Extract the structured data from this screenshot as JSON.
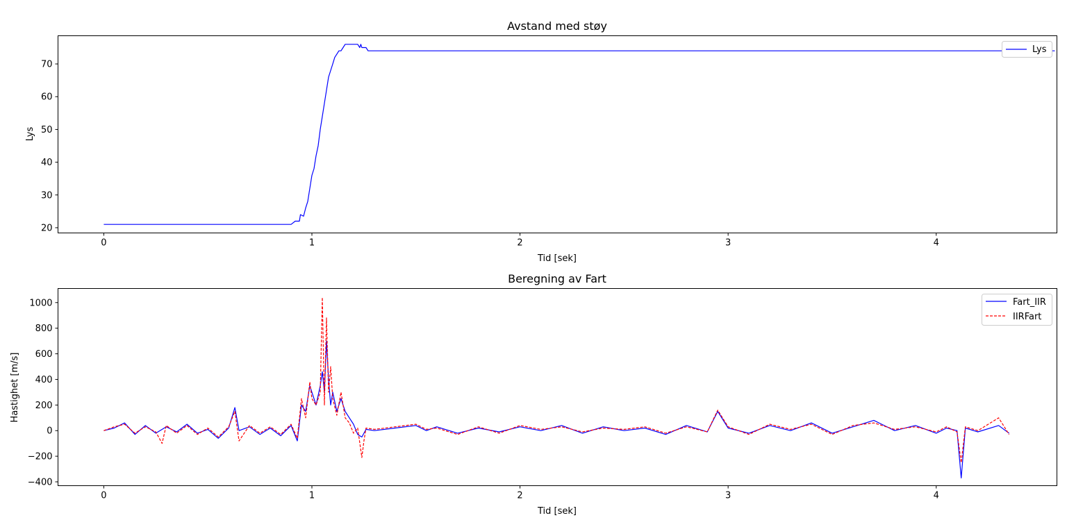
{
  "figure": {
    "background": "#ffffff"
  },
  "chart_data": [
    {
      "type": "line",
      "title": "Avstand med støy",
      "xlabel": "Tid [sek]",
      "ylabel": "Lys",
      "xlim": [
        -0.22,
        4.58
      ],
      "ylim": [
        18.4,
        78.6
      ],
      "xticks": [
        0,
        1,
        2,
        3,
        4
      ],
      "xtick_labels": [
        "0",
        "1",
        "2",
        "3",
        "4"
      ],
      "yticks": [
        20,
        30,
        40,
        50,
        60,
        70
      ],
      "ytick_labels": [
        "20",
        "30",
        "40",
        "50",
        "60",
        "70"
      ],
      "grid": false,
      "legend": {
        "position": "top-right",
        "entries": [
          {
            "label": "Lys",
            "color": "#0000ff",
            "style": "solid"
          }
        ]
      },
      "series": [
        {
          "name": "Lys",
          "color": "#0000ff",
          "style": "solid",
          "x": [
            0,
            0.5,
            0.9,
            0.92,
            0.94,
            0.945,
            0.96,
            0.97,
            0.98,
            0.99,
            1.0,
            1.01,
            1.02,
            1.03,
            1.04,
            1.05,
            1.06,
            1.07,
            1.08,
            1.09,
            1.1,
            1.11,
            1.12,
            1.13,
            1.14,
            1.15,
            1.16,
            1.17,
            1.18,
            1.2,
            1.22,
            1.23,
            1.235,
            1.24,
            1.25,
            1.26,
            1.27,
            1.5,
            2.0,
            3.0,
            4.0,
            4.57
          ],
          "y": [
            21,
            21,
            21,
            22,
            22,
            24,
            23.5,
            26,
            28,
            32,
            36,
            38,
            42,
            45,
            50,
            54,
            58,
            62,
            66,
            68,
            70,
            72,
            73,
            74,
            74,
            75,
            76,
            76,
            76,
            76,
            76,
            75,
            76,
            75,
            75,
            75,
            74,
            74,
            74,
            74,
            74,
            74
          ]
        }
      ]
    },
    {
      "type": "line",
      "title": "Beregning av Fart",
      "xlabel": "Tid [sek]",
      "ylabel": "Hastighet [m/s]",
      "xlim": [
        -0.22,
        4.58
      ],
      "ylim": [
        -430,
        1110
      ],
      "xticks": [
        0,
        1,
        2,
        3,
        4
      ],
      "xtick_labels": [
        "0",
        "1",
        "2",
        "3",
        "4"
      ],
      "yticks": [
        -400,
        -200,
        0,
        200,
        400,
        600,
        800,
        1000
      ],
      "ytick_labels": [
        "−400",
        "−200",
        "0",
        "200",
        "400",
        "600",
        "800",
        "1000"
      ],
      "grid": false,
      "legend": {
        "position": "top-right",
        "entries": [
          {
            "label": "Fart_IIR",
            "color": "#0000ff",
            "style": "solid"
          },
          {
            "label": "IIRFart",
            "color": "#ff0000",
            "style": "dashed"
          }
        ]
      },
      "series": [
        {
          "name": "Fart_IIR",
          "color": "#0000ff",
          "style": "solid",
          "x": [
            0,
            0.05,
            0.1,
            0.15,
            0.2,
            0.25,
            0.3,
            0.35,
            0.4,
            0.45,
            0.5,
            0.55,
            0.6,
            0.63,
            0.65,
            0.7,
            0.75,
            0.8,
            0.85,
            0.9,
            0.93,
            0.95,
            0.97,
            0.99,
            1.0,
            1.02,
            1.04,
            1.05,
            1.06,
            1.07,
            1.08,
            1.09,
            1.1,
            1.12,
            1.14,
            1.16,
            1.18,
            1.2,
            1.22,
            1.24,
            1.26,
            1.3,
            1.4,
            1.5,
            1.55,
            1.6,
            1.7,
            1.8,
            1.9,
            2.0,
            2.1,
            2.2,
            2.3,
            2.4,
            2.5,
            2.6,
            2.7,
            2.8,
            2.9,
            2.95,
            3.0,
            3.1,
            3.2,
            3.3,
            3.4,
            3.5,
            3.6,
            3.7,
            3.8,
            3.9,
            4.0,
            4.05,
            4.1,
            4.12,
            4.14,
            4.2,
            4.3,
            4.35
          ],
          "y": [
            0,
            20,
            60,
            -30,
            40,
            -20,
            30,
            -10,
            50,
            -20,
            10,
            -60,
            20,
            180,
            0,
            30,
            -30,
            20,
            -40,
            40,
            -80,
            200,
            150,
            350,
            300,
            200,
            350,
            460,
            300,
            700,
            400,
            200,
            300,
            150,
            250,
            150,
            100,
            50,
            -30,
            -50,
            10,
            0,
            20,
            40,
            0,
            30,
            -20,
            20,
            -10,
            30,
            0,
            40,
            -20,
            30,
            0,
            20,
            -30,
            40,
            -10,
            150,
            20,
            -20,
            40,
            0,
            60,
            -20,
            30,
            80,
            0,
            40,
            -20,
            20,
            0,
            -370,
            20,
            -10,
            40,
            -20
          ]
        },
        {
          "name": "IIRFart",
          "color": "#ff0000",
          "style": "dashed",
          "x": [
            0,
            0.05,
            0.1,
            0.15,
            0.2,
            0.25,
            0.28,
            0.3,
            0.35,
            0.4,
            0.45,
            0.5,
            0.55,
            0.6,
            0.63,
            0.65,
            0.7,
            0.75,
            0.8,
            0.85,
            0.9,
            0.93,
            0.95,
            0.97,
            0.99,
            1.0,
            1.02,
            1.04,
            1.05,
            1.06,
            1.07,
            1.08,
            1.09,
            1.1,
            1.12,
            1.14,
            1.16,
            1.18,
            1.2,
            1.22,
            1.24,
            1.25,
            1.26,
            1.3,
            1.4,
            1.5,
            1.55,
            1.6,
            1.7,
            1.8,
            1.9,
            2.0,
            2.1,
            2.2,
            2.3,
            2.4,
            2.5,
            2.6,
            2.7,
            2.8,
            2.9,
            2.95,
            3.0,
            3.1,
            3.2,
            3.3,
            3.4,
            3.5,
            3.6,
            3.7,
            3.8,
            3.9,
            4.0,
            4.05,
            4.1,
            4.12,
            4.14,
            4.2,
            4.3,
            4.35
          ],
          "y": [
            0,
            30,
            50,
            -20,
            30,
            -10,
            -100,
            40,
            -20,
            40,
            -30,
            20,
            -50,
            30,
            150,
            -80,
            40,
            -20,
            30,
            -30,
            50,
            -60,
            250,
            100,
            380,
            250,
            200,
            300,
            1040,
            200,
            880,
            300,
            500,
            250,
            120,
            300,
            100,
            60,
            -20,
            20,
            -210,
            -80,
            20,
            10,
            30,
            50,
            10,
            20,
            -30,
            30,
            -20,
            40,
            10,
            30,
            -10,
            20,
            10,
            30,
            -20,
            30,
            -10,
            160,
            30,
            -30,
            50,
            10,
            50,
            -30,
            40,
            60,
            10,
            30,
            -10,
            30,
            -10,
            -250,
            30,
            0,
            100,
            -30
          ]
        }
      ]
    }
  ]
}
